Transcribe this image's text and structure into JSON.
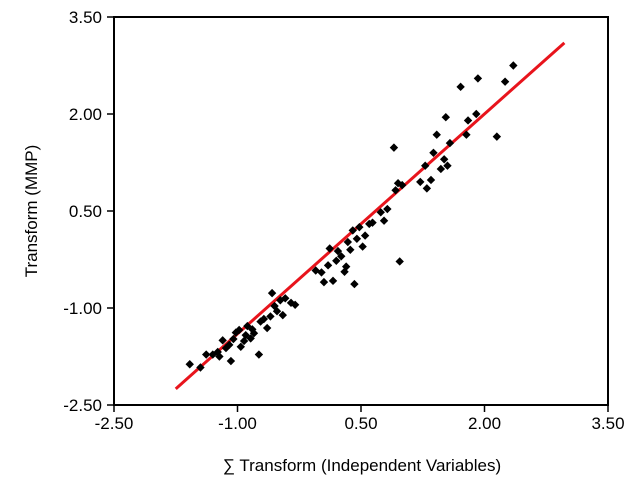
{
  "chart_data": {
    "type": "scatter",
    "title": "",
    "xlabel": "∑ Transform (Independent Variables)",
    "ylabel": "Transform (MMP)",
    "xlim": [
      -2.5,
      3.5
    ],
    "ylim": [
      -2.5,
      3.5
    ],
    "x_ticks": [
      "-2.50",
      "-1.00",
      "0.50",
      "2.00",
      "3.50"
    ],
    "y_ticks": [
      "3.50",
      "2.00",
      "0.50",
      "-1.00",
      "-2.50"
    ],
    "grid": false,
    "legend": "none",
    "colors": {
      "points": "#000000",
      "fit_line": "#e8141c",
      "frame": "#000000"
    },
    "series": [
      {
        "kind": "points",
        "marker": "diamond",
        "points": [
          [
            -1.58,
            -1.87
          ],
          [
            -1.45,
            -1.92
          ],
          [
            -1.38,
            -1.72
          ],
          [
            -1.3,
            -1.72
          ],
          [
            -1.24,
            -1.68
          ],
          [
            -1.22,
            -1.75
          ],
          [
            -1.18,
            -1.5
          ],
          [
            -1.14,
            -1.62
          ],
          [
            -1.1,
            -1.57
          ],
          [
            -1.08,
            -1.82
          ],
          [
            -1.05,
            -1.48
          ],
          [
            -1.02,
            -1.38
          ],
          [
            -0.98,
            -1.34
          ],
          [
            -0.96,
            -1.6
          ],
          [
            -0.92,
            -1.51
          ],
          [
            -0.9,
            -1.42
          ],
          [
            -0.88,
            -1.28
          ],
          [
            -0.84,
            -1.47
          ],
          [
            -0.82,
            -1.33
          ],
          [
            -0.8,
            -1.39
          ],
          [
            -0.74,
            -1.72
          ],
          [
            -0.72,
            -1.21
          ],
          [
            -0.68,
            -1.17
          ],
          [
            -0.64,
            -1.31
          ],
          [
            -0.6,
            -1.13
          ],
          [
            -0.58,
            -0.77
          ],
          [
            -0.55,
            -0.97
          ],
          [
            -0.52,
            -1.05
          ],
          [
            -0.48,
            -0.88
          ],
          [
            -0.45,
            -1.11
          ],
          [
            -0.42,
            -0.85
          ],
          [
            -0.35,
            -0.92
          ],
          [
            -0.3,
            -0.95
          ],
          [
            -0.05,
            -0.42
          ],
          [
            0.02,
            -0.45
          ],
          [
            0.05,
            -0.6
          ],
          [
            0.1,
            -0.34
          ],
          [
            0.12,
            -0.08
          ],
          [
            0.16,
            -0.58
          ],
          [
            0.2,
            -0.27
          ],
          [
            0.22,
            -0.12
          ],
          [
            0.26,
            -0.2
          ],
          [
            0.3,
            -0.44
          ],
          [
            0.32,
            -0.36
          ],
          [
            0.34,
            0.02
          ],
          [
            0.37,
            -0.1
          ],
          [
            0.4,
            0.2
          ],
          [
            0.42,
            -0.63
          ],
          [
            0.45,
            0.07
          ],
          [
            0.48,
            0.25
          ],
          [
            0.52,
            -0.05
          ],
          [
            0.55,
            0.12
          ],
          [
            0.6,
            0.3
          ],
          [
            0.64,
            0.32
          ],
          [
            0.74,
            0.48
          ],
          [
            0.78,
            0.35
          ],
          [
            0.82,
            0.53
          ],
          [
            0.9,
            1.48
          ],
          [
            0.92,
            0.82
          ],
          [
            0.95,
            0.93
          ],
          [
            0.97,
            -0.28
          ],
          [
            1.0,
            0.9
          ],
          [
            1.22,
            0.95
          ],
          [
            1.28,
            1.2
          ],
          [
            1.3,
            0.85
          ],
          [
            1.35,
            0.98
          ],
          [
            1.38,
            1.4
          ],
          [
            1.42,
            1.68
          ],
          [
            1.47,
            1.15
          ],
          [
            1.51,
            1.3
          ],
          [
            1.53,
            1.95
          ],
          [
            1.55,
            1.2
          ],
          [
            1.58,
            1.55
          ],
          [
            1.71,
            2.42
          ],
          [
            1.78,
            1.68
          ],
          [
            1.8,
            1.9
          ],
          [
            1.9,
            2.0
          ],
          [
            1.92,
            2.55
          ],
          [
            2.15,
            1.65
          ],
          [
            2.25,
            2.5
          ],
          [
            2.35,
            2.75
          ]
        ]
      },
      {
        "kind": "line",
        "points": [
          [
            -1.75,
            -2.25
          ],
          [
            2.97,
            3.1
          ]
        ]
      }
    ]
  }
}
